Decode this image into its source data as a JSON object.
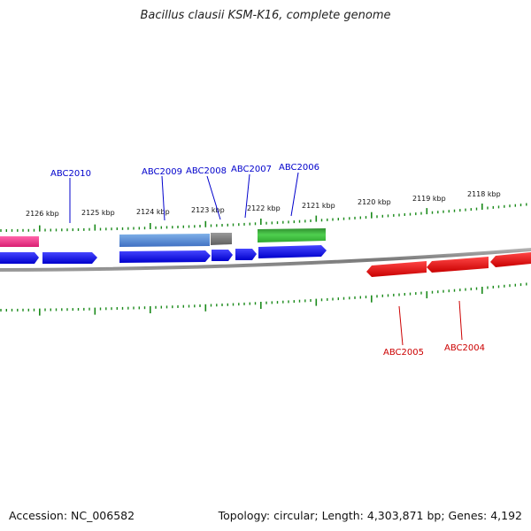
{
  "title": "Bacillus clausii KSM-K16, complete genome",
  "footer": {
    "accession": "Accession: NC_006582",
    "summary": "Topology: circular; Length: 4,303,871 bp; Genes: 4,192"
  },
  "colors": {
    "tick": "#1a8a1a",
    "backbone": "#8a8a8a",
    "forward_label": "#0000cc",
    "reverse_label": "#cc0000",
    "blue_gene": "#1010ee",
    "red_gene": "#ee1010",
    "pink_feature": "#ee3d8e",
    "lightblue_feature": "#4a7fd1",
    "gray_feature": "#7a7a7a",
    "green_feature": "#3cbf3c"
  },
  "ruler_labels": [
    "2126 kbp",
    "2125 kbp",
    "2124 kbp",
    "2123 kbp",
    "2122 kbp",
    "2121 kbp",
    "2120 kbp",
    "2119 kbp",
    "2118 kbp"
  ],
  "gene_labels": [
    "ABC2010",
    "ABC2009",
    "ABC2008",
    "ABC2007",
    "ABC2006",
    "ABC2005",
    "ABC2004"
  ]
}
